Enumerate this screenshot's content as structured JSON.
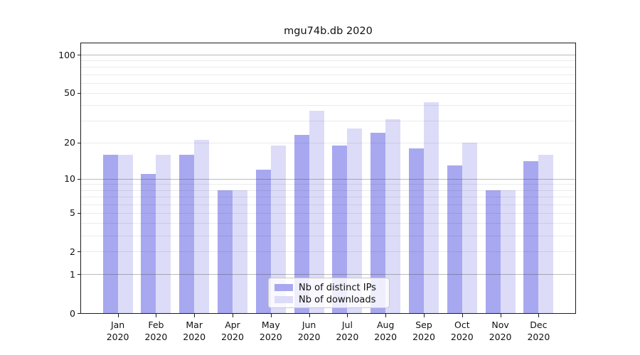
{
  "title": "mgu74b.db 2020",
  "chart_data": {
    "type": "bar",
    "title": "mgu74b.db 2020",
    "categories": [
      "Jan",
      "Feb",
      "Mar",
      "Apr",
      "May",
      "Jun",
      "Jul",
      "Aug",
      "Sep",
      "Oct",
      "Nov",
      "Dec"
    ],
    "category_year": "2020",
    "series": [
      {
        "name": "Nb of distinct IPs",
        "color": "#a8a8f0",
        "values": [
          16,
          11,
          16,
          8,
          12,
          23,
          19,
          24,
          18,
          13,
          8,
          14
        ]
      },
      {
        "name": "Nb of downloads",
        "color": "#dcdcf8",
        "values": [
          16,
          16,
          21,
          8,
          19,
          36,
          26,
          31,
          42,
          20,
          8,
          16
        ]
      }
    ],
    "xlabel": "",
    "ylabel": "",
    "yscale": "log1p",
    "ylim": [
      0,
      126
    ],
    "y_tick_values": [
      0,
      1,
      2,
      5,
      10,
      20,
      50,
      100
    ],
    "y_tick_labels": [
      "0",
      "1",
      "2",
      "5",
      "10",
      "20",
      "50",
      "100"
    ],
    "y_major_gridlines": [
      1,
      10,
      100
    ],
    "y_minor_gridlines": [
      2,
      3,
      4,
      5,
      6,
      7,
      8,
      9,
      20,
      30,
      40,
      50,
      60,
      70,
      80,
      90
    ],
    "grid": "on",
    "legend_position": "lower center"
  },
  "legend": {
    "items": [
      {
        "label": "Nb of distinct IPs",
        "color": "#a8a8f0"
      },
      {
        "label": "Nb of downloads",
        "color": "#dcdcf8"
      }
    ]
  },
  "colors": {
    "ips_bar": "#a8a8f0",
    "downloads_bar": "#dcdcf8",
    "spine": "#1c1c1c",
    "major_grid": "#b3b3b3",
    "minor_grid": "#e8e8e8",
    "background": "#ffffff"
  }
}
